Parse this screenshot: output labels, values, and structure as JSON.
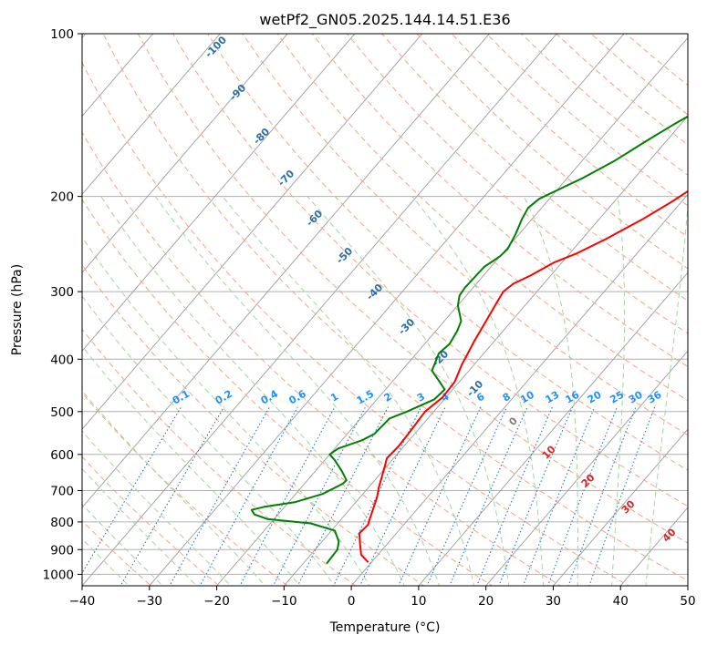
{
  "chart_data": {
    "type": "line",
    "title": "wetPf2_GN05.2025.144.14.51.E36",
    "xlabel": "Temperature (°C)",
    "ylabel": "Pressure (hPa)",
    "xlim": [
      -40,
      50
    ],
    "ylim": [
      1050,
      100
    ],
    "y_scale": "log",
    "grid": true,
    "x_ticks": [
      "−40",
      "−30",
      "−20",
      "−10",
      "0",
      "10",
      "20",
      "30",
      "40",
      "50"
    ],
    "y_ticks": [
      "100",
      "200",
      "300",
      "400",
      "500",
      "600",
      "700",
      "800",
      "900",
      "1000"
    ],
    "series": [
      {
        "color": "#ff0000",
        "points": [
          [
            -0.5,
            950
          ],
          [
            -2.5,
            920
          ],
          [
            -4,
            880
          ],
          [
            -5.5,
            840
          ],
          [
            -5.3,
            810
          ],
          [
            -5.8,
            790
          ],
          [
            -6.5,
            760
          ],
          [
            -7.5,
            720
          ],
          [
            -8.5,
            690
          ],
          [
            -10,
            640
          ],
          [
            -11,
            610
          ],
          [
            -10.8,
            580
          ],
          [
            -11,
            540
          ],
          [
            -11.3,
            500
          ],
          [
            -10.5,
            470
          ],
          [
            -10.7,
            440
          ],
          [
            -11.8,
            410
          ],
          [
            -13,
            370
          ],
          [
            -13.8,
            340
          ],
          [
            -14.7,
            310
          ],
          [
            -15,
            300
          ],
          [
            -14.5,
            290
          ],
          [
            -13,
            280
          ],
          [
            -11.2,
            265
          ],
          [
            -9,
            255
          ],
          [
            -6.5,
            240
          ],
          [
            -3.5,
            220
          ],
          [
            -1.5,
            205
          ],
          [
            0.3,
            190
          ],
          [
            2,
            175
          ],
          [
            4,
            160
          ],
          [
            6,
            148
          ],
          [
            8,
            136
          ],
          [
            10,
            125
          ],
          [
            12,
            115
          ],
          [
            14.5,
            107
          ],
          [
            17,
            100
          ]
        ]
      },
      {
        "color": "#008000",
        "points": [
          [
            -6.5,
            955
          ],
          [
            -6.7,
            900
          ],
          [
            -7.5,
            870
          ],
          [
            -9.5,
            830
          ],
          [
            -14,
            805
          ],
          [
            -21,
            790
          ],
          [
            -23.5,
            775
          ],
          [
            -24.5,
            760
          ],
          [
            -23,
            750
          ],
          [
            -19,
            735
          ],
          [
            -16,
            710
          ],
          [
            -14.3,
            680
          ],
          [
            -14.2,
            670
          ],
          [
            -16,
            645
          ],
          [
            -18.5,
            615
          ],
          [
            -20,
            600
          ],
          [
            -19.5,
            585
          ],
          [
            -17,
            565
          ],
          [
            -16,
            550
          ],
          [
            -15.7,
            515
          ],
          [
            -14,
            500
          ],
          [
            -11.5,
            475
          ],
          [
            -11.2,
            455
          ],
          [
            -13,
            440
          ],
          [
            -15.5,
            420
          ],
          [
            -16.7,
            390
          ],
          [
            -16.3,
            375
          ],
          [
            -16.8,
            355
          ],
          [
            -17.5,
            340
          ],
          [
            -20,
            318
          ],
          [
            -21,
            305
          ],
          [
            -21.2,
            295
          ],
          [
            -21,
            270
          ],
          [
            -20,
            258
          ],
          [
            -19.8,
            250
          ],
          [
            -20.5,
            235
          ],
          [
            -21.5,
            220
          ],
          [
            -22,
            210
          ],
          [
            -21.5,
            202
          ],
          [
            -20,
            195
          ],
          [
            -17.7,
            185
          ],
          [
            -15.2,
            172
          ],
          [
            -13,
            158
          ],
          [
            -11,
            147
          ],
          [
            -8.3,
            135
          ],
          [
            -5,
            123
          ],
          [
            -1.5,
            111
          ],
          [
            0.5,
            103
          ],
          [
            1.5,
            100
          ]
        ]
      }
    ],
    "dry_adiabat_labels": [
      "-100",
      "-90",
      "-80",
      "-70",
      "-60",
      "-50",
      "-40",
      "-30",
      "-20",
      "-10"
    ],
    "moist_adiabat_labels": [
      "0",
      "10",
      "20",
      "30",
      "40"
    ],
    "mixing_ratio_labels": [
      "0.1",
      "0.2",
      "0.4",
      "0.6",
      "1",
      "1.5",
      "2",
      "3",
      "4",
      "6",
      "8",
      "10",
      "13",
      "16",
      "20",
      "25",
      "30",
      "36"
    ],
    "colors": {
      "temperature": "#ff0000",
      "dewpoint": "#008000",
      "isotherm": "#9c9c9c",
      "isobar": "#b0b0b0",
      "dry_adiabat": "#f4a582",
      "moist_adiabat": "#a6d4a0",
      "mixing_ratio": "#1f77d4",
      "dry_label": "#2a6fa8",
      "moist_label": "#d62728",
      "mixing_label": "#1e90ff"
    }
  }
}
